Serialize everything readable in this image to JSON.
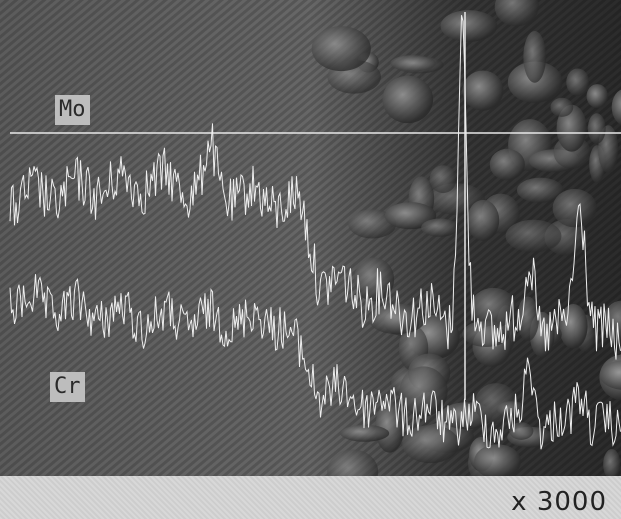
{
  "image": {
    "labels": [
      "Mo",
      "Cr"
    ]
  },
  "caption": "x 3000"
}
